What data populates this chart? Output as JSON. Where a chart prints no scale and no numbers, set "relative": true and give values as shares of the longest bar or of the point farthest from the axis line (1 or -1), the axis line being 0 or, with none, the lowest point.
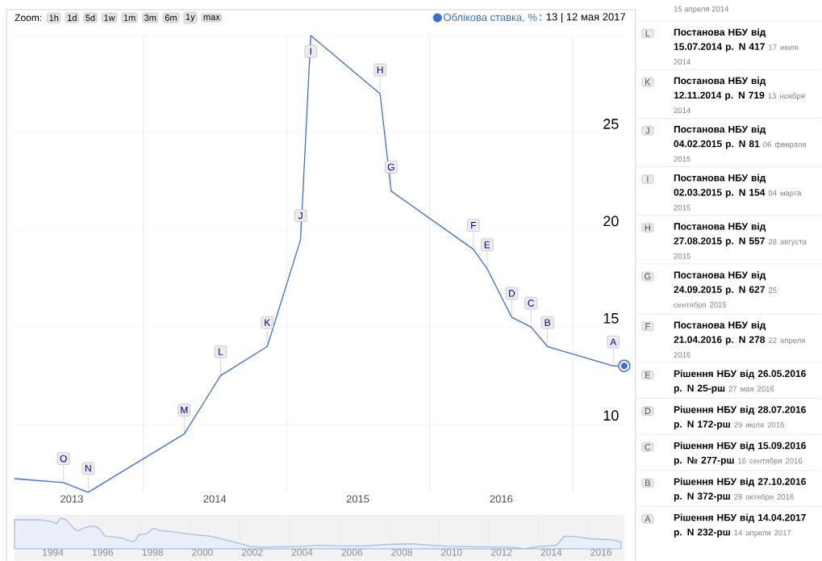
{
  "chart_data": [
    {
      "type": "line",
      "legend": "top right",
      "grid": true,
      "xlim": [
        "2013-02-06",
        "2017-05-12"
      ],
      "ylim": [
        6.5,
        30
      ],
      "xticks": [
        {
          "value": "2013-07-02",
          "label": "2013"
        },
        {
          "value": "2014-01-01",
          "label": null
        },
        {
          "value": "2014-07-02",
          "label": "2014"
        },
        {
          "value": "2015-01-01",
          "label": null
        },
        {
          "value": "2015-07-02",
          "label": "2015"
        },
        {
          "value": "2016-01-01",
          "label": null
        },
        {
          "value": "2016-07-02",
          "label": "2016"
        },
        {
          "value": "2017-01-01",
          "label": null
        }
      ],
      "yticks": [
        10,
        15,
        20,
        25,
        {
          "value": 30,
          "label": null
        }
      ],
      "x": [
        "2013-02-06",
        "2013-06-11",
        "2013-08-13",
        "2014-04-15",
        "2014-07-17",
        "2014-11-13",
        "2015-02-06",
        "2015-03-04",
        "2015-08-28",
        "2015-09-25",
        "2016-04-22",
        "2016-05-27",
        "2016-07-29",
        "2016-09-16",
        "2016-10-28",
        "2017-04-14",
        "2017-05-12"
      ],
      "series": [
        {
          "name": "Облікова ставка, %",
          "color": "#3c6fd6",
          "values": [
            7.2,
            7,
            6.5,
            9.5,
            12.5,
            14,
            19.5,
            30,
            27,
            22,
            19,
            18,
            15.5,
            15,
            14,
            13,
            13
          ]
        }
      ],
      "annotations": [
        {
          "text": "O",
          "x": "2013-06-11",
          "y": 7
        },
        {
          "text": "N",
          "x": "2013-08-13",
          "y": 6.5
        },
        {
          "text": "M",
          "x": "2014-04-15",
          "y": 9.5
        },
        {
          "text": "L",
          "x": "2014-07-17",
          "y": 12.5
        },
        {
          "text": "K",
          "x": "2014-11-13",
          "y": 14
        },
        {
          "text": "J",
          "x": "2015-02-06",
          "y": 19.5
        },
        {
          "text": "I",
          "x": "2015-03-04",
          "y": 30
        },
        {
          "text": "H",
          "x": "2015-08-28",
          "y": 27
        },
        {
          "text": "G",
          "x": "2015-09-25",
          "y": 22
        },
        {
          "text": "F",
          "x": "2016-04-22",
          "y": 19
        },
        {
          "text": "E",
          "x": "2016-05-27",
          "y": 18
        },
        {
          "text": "D",
          "x": "2016-07-29",
          "y": 15.5
        },
        {
          "text": "C",
          "x": "2016-09-16",
          "y": 15
        },
        {
          "text": "B",
          "x": "2016-10-28",
          "y": 14
        },
        {
          "text": "A",
          "x": "2017-04-14",
          "y": 13
        },
        "Zoom:",
        "1h",
        "1d",
        "5d",
        "1w",
        "1m",
        "3m",
        "6m",
        "1y",
        "max",
        ": 13 | 12 мая 2017",
        "15 апреля 2014",
        "L",
        "Постанова НБУ від 15.07.2014 р. N 417",
        "17 июля 2014",
        "K",
        "Постанова НБУ від 12.11.2014 р. N 719",
        "13 ноября 2014",
        "J",
        "Постанова НБУ від 04.02.2015 р. N 81",
        "06 февраля 2015",
        "I",
        "Постанова НБУ від 02.03.2015 р. N 154",
        "04 марта 2015",
        "H",
        "Постанова НБУ від 27.08.2015 р. N 557",
        "28 августа 2015",
        "G",
        "Постанова НБУ від 24.09.2015 р. N 627",
        "25 сентября 2015",
        "F",
        "Постанова НБУ від 21.04.2016 р. N 278",
        "22 апреля 2016",
        "E",
        "Рішення НБУ від 26.05.2016 р. N 25-рш",
        "27 мая 2016",
        "D",
        "Рішення НБУ від 28.07.2016 р. N 172-рш",
        "29 июля 2016",
        "C",
        "Рішення НБУ від 15.09.2016 р. № 277-рш",
        "16 сентября 2016",
        "B",
        "Рішення НБУ від 27.10.2016 р. N 372-рш",
        "28 октября 2016",
        "A",
        "Рішення НБУ від 14.04.2017 р. N 232-рш",
        "14 апреля 2017"
      ]
    },
    {
      "type": "area",
      "relative": true,
      "grid": "x",
      "xlim": [
        1992.96,
        2017.43
      ],
      "xticks": [
        {
          "value": 1994,
          "label": null
        },
        {
          "value": 1994.5,
          "label": "1994"
        },
        {
          "value": 1996,
          "label": null
        },
        {
          "value": 1996.5,
          "label": "1996"
        },
        {
          "value": 1998,
          "label": null
        },
        {
          "value": 1998.5,
          "label": "1998"
        },
        {
          "value": 2000,
          "label": null
        },
        {
          "value": 2000.5,
          "label": "2000"
        },
        {
          "value": 2002,
          "label": null
        },
        {
          "value": 2002.5,
          "label": "2002"
        },
        {
          "value": 2004,
          "label": null
        },
        {
          "value": 2004.5,
          "label": "2004"
        },
        {
          "value": 2006,
          "label": null
        },
        {
          "value": 2006.5,
          "label": "2006"
        },
        {
          "value": 2008,
          "label": null
        },
        {
          "value": 2008.5,
          "label": "2008"
        },
        {
          "value": 2010,
          "label": null
        },
        {
          "value": 2010.5,
          "label": "2010"
        },
        {
          "value": 2012,
          "label": null
        },
        {
          "value": 2012.5,
          "label": "2012"
        },
        {
          "value": 2014,
          "label": null
        },
        {
          "value": 2014.5,
          "label": "2014"
        },
        {
          "value": 2016,
          "label": null
        },
        {
          "value": 2016.5,
          "label": "2016"
        }
      ],
      "x": [
        1992.96,
        1994.0,
        1994.49,
        1994.65,
        1994.81,
        1995.05,
        1995.36,
        1995.52,
        1995.78,
        1996.0,
        1996.27,
        1996.43,
        1996.59,
        1997.24,
        1997.62,
        1997.79,
        1997.95,
        1998.11,
        1998.29,
        1998.53,
        1998.85,
        1999.34,
        1999.99,
        2000.8,
        2001.44,
        2002.09,
        2002.41,
        2002.9,
        2004.52,
        2005.17,
        2005.82,
        2006.95,
        2007.92,
        2008.89,
        2010.34,
        2012.28,
        2012.93,
        2013.42,
        2014.06,
        2014.71,
        2015.03,
        2015.52,
        2016.0,
        2016.98,
        2017.3
      ],
      "series": [
        {
          "color": "#a8bde6",
          "values": [
            0.94,
            0.94,
            0.88,
            0.81,
            1,
            0.93,
            0.64,
            0.59,
            0.69,
            0.74,
            0.71,
            0.59,
            0.41,
            0.36,
            0.24,
            0.25,
            0.45,
            0.47,
            0.5,
            0.67,
            0.59,
            0.55,
            0.47,
            0.41,
            0.29,
            0.15,
            0.08,
            0.05,
            0.08,
            0.12,
            0.1,
            0.09,
            0.14,
            0.16,
            0.08,
            0.06,
            0.05,
            0,
            0.08,
            0.12,
            0.41,
            0.39,
            0.33,
            0.29,
            0.22
          ]
        }
      ]
    }
  ]
}
